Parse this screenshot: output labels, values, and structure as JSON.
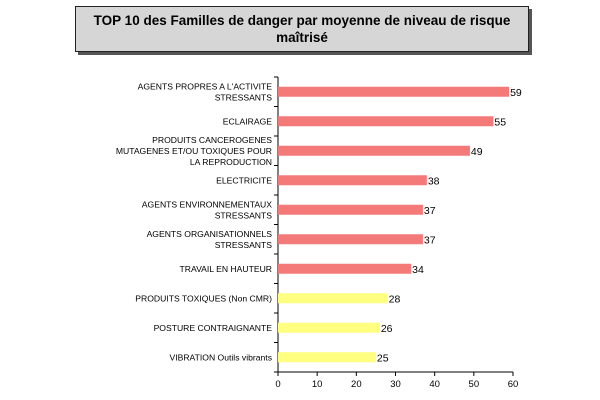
{
  "chart_data": {
    "type": "bar",
    "orientation": "horizontal",
    "title": "TOP 10 des Familles de danger par moyenne de niveau de risque maîtrisé",
    "categories": [
      [
        "AGENTS PROPRES A L'ACTIVITE",
        "STRESSANTS"
      ],
      [
        "ECLAIRAGE"
      ],
      [
        "PRODUITS CANCEROGENES",
        "MUTAGENES ET/OU TOXIQUES POUR",
        "LA REPRODUCTION"
      ],
      [
        "ELECTRICITE"
      ],
      [
        "AGENTS ENVIRONNEMENTAUX",
        "STRESSANTS"
      ],
      [
        "AGENTS ORGANISATIONNELS",
        "STRESSANTS"
      ],
      [
        "TRAVAIL EN HAUTEUR"
      ],
      [
        "PRODUITS TOXIQUES  (Non CMR)"
      ],
      [
        "POSTURE CONTRAIGNANTE"
      ],
      [
        "VIBRATION Outils vibrants"
      ]
    ],
    "values": [
      59,
      55,
      49,
      38,
      37,
      37,
      34,
      28,
      26,
      25
    ],
    "bar_colors": [
      "#f47a7a",
      "#f47a7a",
      "#f47a7a",
      "#f47a7a",
      "#f47a7a",
      "#f47a7a",
      "#f47a7a",
      "#ffff80",
      "#ffff80",
      "#ffff80"
    ],
    "xlim": [
      0,
      60
    ],
    "xticks": [
      0,
      10,
      20,
      30,
      40,
      50,
      60
    ],
    "xlabel": "",
    "ylabel": "",
    "grid": false
  }
}
